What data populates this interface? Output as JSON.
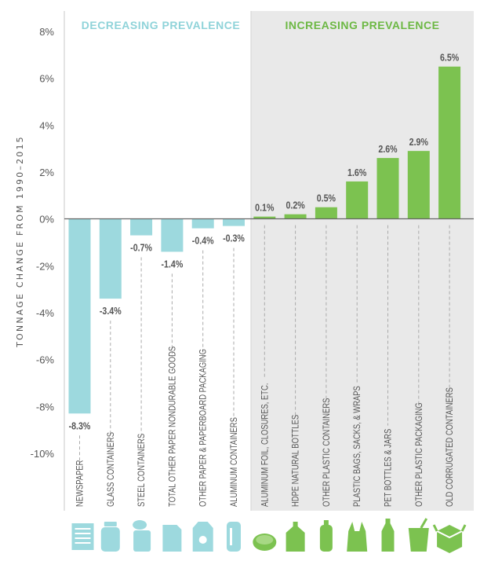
{
  "chart_data": {
    "type": "bar",
    "ylabel": "TONNAGE CHANGE FROM 1990–2015",
    "ylim": [
      -10,
      8
    ],
    "yticks": [
      "8%",
      "6%",
      "4%",
      "2%",
      "0%",
      "-2%",
      "-4%",
      "-6%",
      "-8%",
      "-10%"
    ],
    "grid": false,
    "groups": [
      {
        "name": "DECREASING PREVALENCE",
        "color": "#9dd9de"
      },
      {
        "name": "INCREASING PREVALENCE",
        "color": "#7cc250"
      }
    ],
    "categories": [
      {
        "label": "NEWSPAPER",
        "value": -8.3,
        "value_label": "-8.3%",
        "group": 0,
        "icon": "newspaper-icon"
      },
      {
        "label": "GLASS CONTAINERS",
        "value": -3.4,
        "value_label": "-3.4%",
        "group": 0,
        "icon": "glass-jar-icon"
      },
      {
        "label": "STEEL CONTAINERS",
        "value": -0.7,
        "value_label": "-0.7%",
        "group": 0,
        "icon": "steel-can-icon"
      },
      {
        "label": "TOTAL OTHER PAPER NONDURABLE GOODS",
        "value": -1.4,
        "value_label": "-1.4%",
        "group": 0,
        "icon": "paper-sheet-icon"
      },
      {
        "label": "OTHER PAPER & PAPERBOARD PACKAGING",
        "value": -0.4,
        "value_label": "-0.4%",
        "group": 0,
        "icon": "paperboard-carton-icon"
      },
      {
        "label": "ALUMINUM CONTAINERS",
        "value": -0.3,
        "value_label": "-0.3%",
        "group": 0,
        "icon": "aluminum-can-icon"
      },
      {
        "label": "ALUMINUM FOIL, CLOSURES, ETC.",
        "value": 0.1,
        "value_label": "0.1%",
        "group": 1,
        "icon": "foil-tray-icon"
      },
      {
        "label": "HDPE NATURAL BOTTLES",
        "value": 0.2,
        "value_label": "0.2%",
        "group": 1,
        "icon": "milk-jug-icon"
      },
      {
        "label": "OTHER PLASTIC CONTAINERS",
        "value": 0.5,
        "value_label": "0.5%",
        "group": 1,
        "icon": "plastic-bottle-icon"
      },
      {
        "label": "PLASTIC BAGS, SACKS, & WRAPS",
        "value": 1.6,
        "value_label": "1.6%",
        "group": 1,
        "icon": "plastic-bag-icon"
      },
      {
        "label": "PET BOTTLES & JARS",
        "value": 2.6,
        "value_label": "2.6%",
        "group": 1,
        "icon": "pet-bottle-icon"
      },
      {
        "label": "OTHER PLASTIC PACKAGING",
        "value": 2.9,
        "value_label": "2.9%",
        "group": 1,
        "icon": "plastic-cup-icon"
      },
      {
        "label": "OLD CORRUGATED CONTAINERS",
        "value": 6.5,
        "value_label": "6.5%",
        "group": 1,
        "icon": "cardboard-box-icon"
      }
    ]
  }
}
